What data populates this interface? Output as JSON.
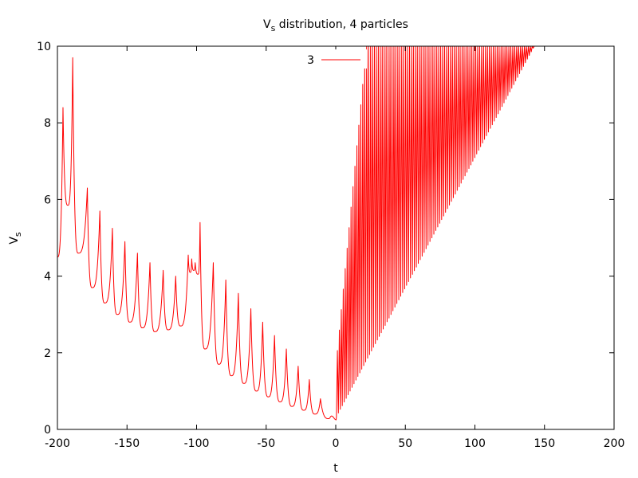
{
  "chart_data": {
    "type": "line",
    "title_main": "V",
    "title_sub": "s",
    "title_rest": " distribution, 4 particles",
    "xlabel": "t",
    "ylabel_main": "V",
    "ylabel_sub": "s",
    "xlim": [
      -200,
      200
    ],
    "ylim": [
      0,
      10
    ],
    "xticks": [
      -200,
      -150,
      -100,
      -50,
      0,
      50,
      100,
      150,
      200
    ],
    "yticks": [
      0,
      2,
      4,
      6,
      8,
      10
    ],
    "xtick_labels": [
      "-200",
      "-150",
      "-100",
      "-50",
      "0",
      "50",
      "100",
      "150",
      "200"
    ],
    "ytick_labels": [
      "0",
      "2",
      "4",
      "6",
      "8",
      "10"
    ],
    "grid": false,
    "legend_position": "top-center",
    "series": [
      {
        "name": "3",
        "color": "#ff0000",
        "regime_negative_t": {
          "peaks_t": [
            -196,
            -189,
            -178.5,
            -169.5,
            -160.5,
            -151.5,
            -142.5,
            -133.5,
            -124,
            -115,
            -106,
            -103.5,
            -101,
            -97.5,
            -88,
            -79,
            -70,
            -61,
            -52.5,
            -44,
            -35.5,
            -27,
            -19,
            -11
          ],
          "peaks_v": [
            8.4,
            9.7,
            6.3,
            5.7,
            5.25,
            4.9,
            4.6,
            4.35,
            4.15,
            4.0,
            4.55,
            4.45,
            4.35,
            5.4,
            4.35,
            3.9,
            3.55,
            3.15,
            2.8,
            2.45,
            2.1,
            1.65,
            1.3,
            0.8
          ],
          "troughs_t": [
            -200,
            -192.5,
            -185,
            -175,
            -166,
            -157,
            -148,
            -139,
            -130,
            -120.5,
            -111.5,
            -104.5,
            -102,
            -99,
            -94,
            -84,
            -75,
            -66,
            -57,
            -48.5,
            -40,
            -31.5,
            -23,
            -15,
            -5,
            -3,
            0.3
          ],
          "troughs_v": [
            4.5,
            5.85,
            4.6,
            3.7,
            3.3,
            3.0,
            2.8,
            2.65,
            2.55,
            2.6,
            2.7,
            4.1,
            4.15,
            4.05,
            2.1,
            1.7,
            1.4,
            1.2,
            1.0,
            0.85,
            0.72,
            0.6,
            0.5,
            0.4,
            0.28,
            0.35,
            0.25
          ]
        },
        "regime_positive_t": {
          "t_start": 0.5,
          "t_end": 147,
          "oscillation_period": 1.4,
          "lower_envelope_start": 0.3,
          "lower_envelope_slope": 0.068,
          "upper_envelope_start": 1.6,
          "upper_envelope_reaches_top_at_t": 22
        }
      }
    ]
  }
}
